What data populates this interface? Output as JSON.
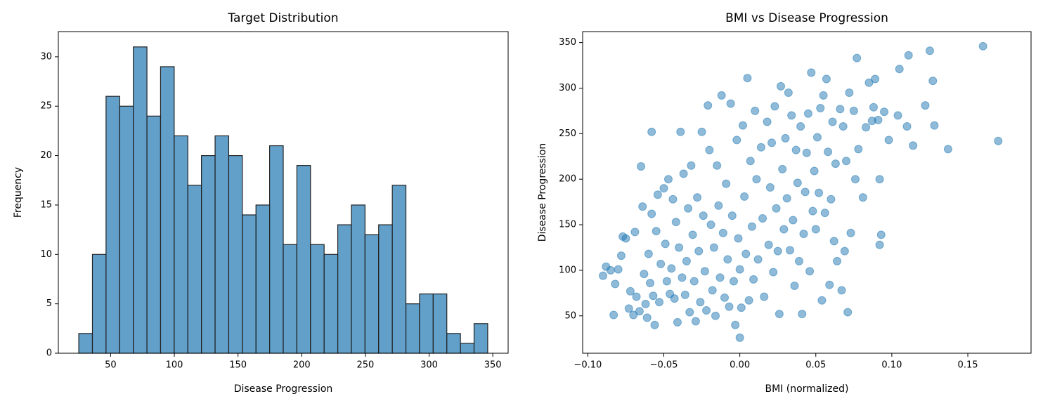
{
  "chart_data": [
    {
      "type": "histogram",
      "title": "Target Distribution",
      "xlabel": "Disease Progression",
      "ylabel": "Frequency",
      "bins": [
        25,
        35.7,
        46.4,
        57.1,
        67.8,
        78.5,
        89.2,
        99.9,
        110.6,
        121.3,
        132,
        142.7,
        153.4,
        164.1,
        174.8,
        185.5,
        196.2,
        206.9,
        217.6,
        228.3,
        239,
        249.7,
        260.4,
        271.1,
        281.8,
        292.5,
        303.2,
        313.9,
        324.6,
        335.3,
        346
      ],
      "values": [
        2,
        10,
        26,
        25,
        31,
        24,
        29,
        22,
        17,
        20,
        22,
        20,
        14,
        15,
        21,
        11,
        19,
        11,
        10,
        13,
        15,
        12,
        13,
        17,
        5,
        6,
        6,
        2,
        1,
        3
      ],
      "color": "#1f77b4",
      "xlim": [
        8.95,
        362.05
      ],
      "xticks": [
        50,
        100,
        150,
        200,
        250,
        300,
        350
      ],
      "ylim": [
        0,
        32.55
      ],
      "yticks": [
        0,
        5,
        10,
        15,
        20,
        25,
        30
      ]
    },
    {
      "type": "scatter",
      "title": "BMI vs Disease Progression",
      "xlabel": "BMI (normalized)",
      "ylabel": "Disease Progression",
      "color": "#1f77b4",
      "x": [
        -0.09,
        -0.088,
        -0.085,
        -0.083,
        -0.082,
        -0.08,
        -0.078,
        -0.077,
        -0.075,
        -0.073,
        -0.072,
        -0.07,
        -0.069,
        -0.068,
        -0.066,
        -0.065,
        -0.064,
        -0.063,
        -0.062,
        -0.061,
        -0.06,
        -0.059,
        -0.058,
        -0.058,
        -0.057,
        -0.056,
        -0.055,
        -0.054,
        -0.053,
        -0.052,
        -0.05,
        -0.049,
        -0.048,
        -0.047,
        -0.046,
        -0.045,
        -0.044,
        -0.043,
        -0.042,
        -0.041,
        -0.04,
        -0.039,
        -0.038,
        -0.037,
        -0.036,
        -0.035,
        -0.034,
        -0.033,
        -0.032,
        -0.031,
        -0.03,
        -0.029,
        -0.028,
        -0.027,
        -0.026,
        -0.025,
        -0.024,
        -0.023,
        -0.022,
        -0.021,
        -0.02,
        -0.019,
        -0.018,
        -0.017,
        -0.016,
        -0.015,
        -0.014,
        -0.013,
        -0.012,
        -0.011,
        -0.01,
        -0.009,
        -0.008,
        -0.007,
        -0.006,
        -0.005,
        -0.004,
        -0.003,
        -0.002,
        -0.001,
        0.0,
        0.0,
        0.001,
        0.002,
        0.003,
        0.004,
        0.005,
        0.006,
        0.007,
        0.008,
        0.009,
        0.01,
        0.011,
        0.012,
        0.014,
        0.015,
        0.016,
        0.018,
        0.019,
        0.02,
        0.021,
        0.022,
        0.023,
        0.024,
        0.025,
        0.026,
        0.027,
        0.028,
        0.029,
        0.03,
        0.031,
        0.032,
        0.033,
        0.034,
        0.035,
        0.036,
        0.037,
        0.038,
        0.039,
        0.04,
        0.041,
        0.042,
        0.043,
        0.044,
        0.045,
        0.046,
        0.047,
        0.048,
        0.049,
        0.05,
        0.051,
        0.052,
        0.053,
        0.054,
        0.055,
        0.056,
        0.057,
        0.058,
        0.059,
        0.06,
        0.061,
        0.062,
        0.063,
        0.064,
        0.066,
        0.067,
        0.068,
        0.069,
        0.07,
        0.071,
        0.072,
        0.073,
        0.075,
        0.076,
        0.077,
        0.078,
        0.081,
        0.083,
        0.085,
        0.087,
        0.088,
        0.089,
        0.091,
        0.092,
        0.092,
        0.093,
        0.095,
        0.098,
        0.104,
        0.105,
        0.11,
        0.111,
        0.114,
        0.122,
        0.125,
        0.127,
        0.128,
        0.137,
        0.16,
        0.17
      ],
      "y": [
        94,
        104,
        100,
        51,
        85,
        101,
        116,
        137,
        135,
        58,
        77,
        51,
        142,
        71,
        55,
        214,
        170,
        96,
        63,
        48,
        118,
        86,
        252,
        162,
        72,
        40,
        143,
        183,
        65,
        107,
        190,
        129,
        88,
        200,
        74,
        102,
        178,
        69,
        153,
        43,
        125,
        252,
        92,
        206,
        73,
        110,
        168,
        54,
        215,
        139,
        88,
        44,
        180,
        121,
        65,
        252,
        160,
        99,
        56,
        281,
        232,
        150,
        78,
        125,
        50,
        215,
        171,
        92,
        292,
        141,
        70,
        195,
        112,
        60,
        283,
        160,
        88,
        40,
        243,
        135,
        101,
        26,
        59,
        259,
        181,
        118,
        311,
        67,
        220,
        148,
        90,
        275,
        200,
        112,
        235,
        157,
        71,
        263,
        128,
        191,
        240,
        98,
        280,
        168,
        121,
        52,
        302,
        211,
        145,
        245,
        179,
        295,
        122,
        270,
        155,
        83,
        232,
        196,
        110,
        258,
        52,
        140,
        186,
        229,
        272,
        99,
        317,
        165,
        209,
        145,
        246,
        185,
        278,
        67,
        292,
        163,
        310,
        230,
        84,
        178,
        263,
        132,
        217,
        110,
        277,
        78,
        258,
        121,
        220,
        54,
        295,
        141,
        275,
        200,
        333,
        233,
        180,
        257,
        306,
        264,
        279,
        310,
        265,
        200,
        128,
        139,
        274,
        243,
        270,
        321,
        258,
        336,
        237,
        281,
        341,
        308,
        259,
        233,
        346,
        242
      ],
      "xlim": [
        -0.1034,
        0.1916
      ],
      "xticks": [
        {
          "value": -0.1,
          "label": "−0.10"
        },
        {
          "value": -0.05,
          "label": "−0.05"
        },
        {
          "value": 0,
          "label": "0.00"
        },
        0.05,
        {
          "value": 0.1,
          "label": "0.10"
        },
        0.15
      ],
      "ylim": [
        8.95,
        362.05
      ],
      "yticks": [
        50,
        100,
        150,
        200,
        250,
        300,
        350
      ]
    }
  ]
}
